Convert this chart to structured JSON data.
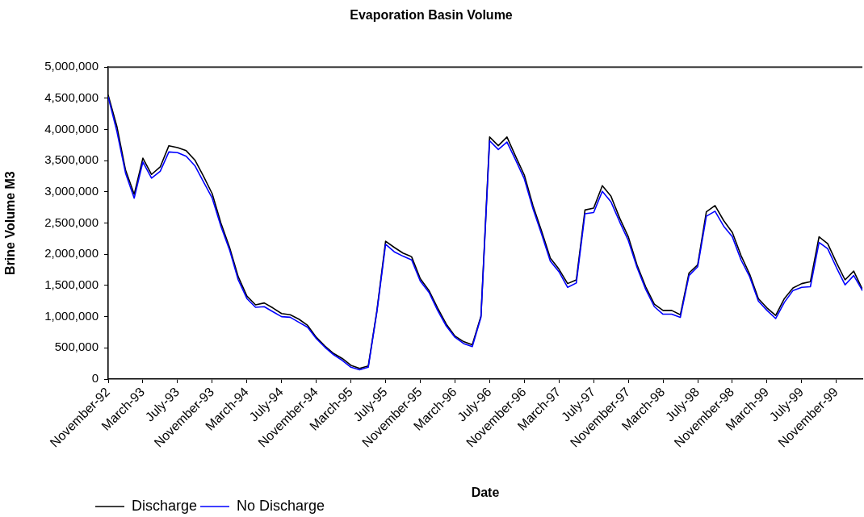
{
  "chart_data": {
    "type": "line",
    "title": "Evaporation Basin Volume",
    "xlabel": "Date",
    "ylabel": "Brine Volume M3",
    "legend": "bottom left",
    "x": [
      "1992-11",
      "1992-12",
      "1993-01",
      "1993-02",
      "1993-03",
      "1993-04",
      "1993-05",
      "1993-06",
      "1993-07",
      "1993-08",
      "1993-09",
      "1993-10",
      "1993-11",
      "1993-12",
      "1994-01",
      "1994-02",
      "1994-03",
      "1994-04",
      "1994-05",
      "1994-06",
      "1994-07",
      "1994-08",
      "1994-09",
      "1994-10",
      "1994-11",
      "1994-12",
      "1995-01",
      "1995-02",
      "1995-03",
      "1995-04",
      "1995-05",
      "1995-06",
      "1995-07",
      "1995-08",
      "1995-09",
      "1995-10",
      "1995-11",
      "1995-12",
      "1996-01",
      "1996-02",
      "1996-03",
      "1996-04",
      "1996-05",
      "1996-06",
      "1996-07",
      "1996-08",
      "1996-09",
      "1996-10",
      "1996-11",
      "1996-12",
      "1997-01",
      "1997-02",
      "1997-03",
      "1997-04",
      "1997-05",
      "1997-06",
      "1997-07",
      "1997-08",
      "1997-09",
      "1997-10",
      "1997-11",
      "1997-12",
      "1998-01",
      "1998-02",
      "1998-03",
      "1998-04",
      "1998-05",
      "1998-06",
      "1998-07",
      "1998-08",
      "1998-09",
      "1998-10",
      "1998-11",
      "1998-12",
      "1999-01",
      "1999-02",
      "1999-03",
      "1999-04",
      "1999-05",
      "1999-06",
      "1999-07",
      "1999-08",
      "1999-09",
      "1999-10",
      "1999-11",
      "1999-12",
      "2000-01",
      "2000-02"
    ],
    "series": [
      {
        "name": "Discharge",
        "color": "#000000",
        "values": [
          4550000,
          4050000,
          3350000,
          2960000,
          3540000,
          3280000,
          3400000,
          3740000,
          3710000,
          3660000,
          3510000,
          3250000,
          2970000,
          2500000,
          2110000,
          1640000,
          1330000,
          1190000,
          1220000,
          1140000,
          1050000,
          1030000,
          960000,
          860000,
          670000,
          530000,
          410000,
          330000,
          220000,
          170000,
          210000,
          1100000,
          2210000,
          2110000,
          2020000,
          1960000,
          1610000,
          1420000,
          1140000,
          880000,
          690000,
          600000,
          550000,
          1010000,
          3880000,
          3740000,
          3880000,
          3570000,
          3270000,
          2780000,
          2370000,
          1940000,
          1760000,
          1530000,
          1590000,
          2710000,
          2740000,
          3100000,
          2930000,
          2580000,
          2280000,
          1830000,
          1480000,
          1200000,
          1100000,
          1100000,
          1030000,
          1700000,
          1830000,
          2680000,
          2780000,
          2540000,
          2350000,
          1980000,
          1680000,
          1290000,
          1140000,
          1020000,
          1290000,
          1460000,
          1530000,
          1560000,
          2280000,
          2170000,
          1870000,
          1590000,
          1730000,
          1440000
        ]
      },
      {
        "name": "No Discharge",
        "color": "#0000ff",
        "values": [
          4520000,
          3970000,
          3300000,
          2900000,
          3480000,
          3220000,
          3330000,
          3640000,
          3630000,
          3570000,
          3420000,
          3160000,
          2900000,
          2450000,
          2070000,
          1590000,
          1290000,
          1150000,
          1160000,
          1080000,
          1000000,
          990000,
          910000,
          830000,
          650000,
          510000,
          390000,
          300000,
          190000,
          150000,
          190000,
          1080000,
          2160000,
          2040000,
          1970000,
          1910000,
          1570000,
          1390000,
          1100000,
          850000,
          670000,
          570000,
          520000,
          990000,
          3820000,
          3680000,
          3800000,
          3510000,
          3210000,
          2730000,
          2320000,
          1890000,
          1720000,
          1470000,
          1540000,
          2650000,
          2670000,
          3010000,
          2840000,
          2520000,
          2220000,
          1790000,
          1440000,
          1160000,
          1040000,
          1040000,
          990000,
          1660000,
          1800000,
          2610000,
          2690000,
          2450000,
          2280000,
          1910000,
          1640000,
          1250000,
          1100000,
          970000,
          1230000,
          1420000,
          1470000,
          1480000,
          2190000,
          2090000,
          1790000,
          1510000,
          1660000,
          1420000
        ]
      }
    ],
    "xlim": [
      "1992-11",
      "2000-02"
    ],
    "xticks": [
      {
        "value": "1992-11",
        "label": "November-92"
      },
      {
        "value": "1993-03",
        "label": "March-93"
      },
      {
        "value": "1993-07",
        "label": "July-93"
      },
      {
        "value": "1993-11",
        "label": "November-93"
      },
      {
        "value": "1994-03",
        "label": "March-94"
      },
      {
        "value": "1994-07",
        "label": "July-94"
      },
      {
        "value": "1994-11",
        "label": "November-94"
      },
      {
        "value": "1995-03",
        "label": "March-95"
      },
      {
        "value": "1995-07",
        "label": "July-95"
      },
      {
        "value": "1995-11",
        "label": "November-95"
      },
      {
        "value": "1996-03",
        "label": "March-96"
      },
      {
        "value": "1996-07",
        "label": "July-96"
      },
      {
        "value": "1996-11",
        "label": "November-96"
      },
      {
        "value": "1997-03",
        "label": "March-97"
      },
      {
        "value": "1997-07",
        "label": "July-97"
      },
      {
        "value": "1997-11",
        "label": "November-97"
      },
      {
        "value": "1998-03",
        "label": "March-98"
      },
      {
        "value": "1998-07",
        "label": "July-98"
      },
      {
        "value": "1998-11",
        "label": "November-98"
      },
      {
        "value": "1999-03",
        "label": "March-99"
      },
      {
        "value": "1999-07",
        "label": "July-99"
      },
      {
        "value": "1999-11",
        "label": "November-99"
      }
    ],
    "ylim": [
      0,
      5000000
    ],
    "yticks": [
      0,
      {
        "value": 500000,
        "label": "500,000"
      },
      {
        "value": 1000000,
        "label": "1,000,000"
      },
      {
        "value": 1500000,
        "label": "1,500,000"
      },
      {
        "value": 2000000,
        "label": "2,000,000"
      },
      {
        "value": 2500000,
        "label": "2,500,000"
      },
      {
        "value": 3000000,
        "label": "3,000,000"
      },
      {
        "value": 3500000,
        "label": "3,500,000"
      },
      {
        "value": 4000000,
        "label": "4,000,000"
      },
      {
        "value": 4500000,
        "label": "4,500,000"
      },
      {
        "value": 5000000,
        "label": "5,000,000"
      }
    ]
  }
}
